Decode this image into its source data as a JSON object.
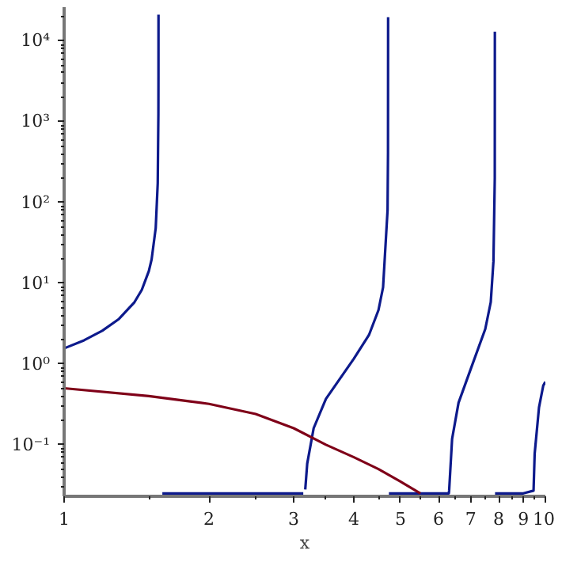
{
  "chart_data": {
    "type": "line",
    "xlabel": "x",
    "log": "xy",
    "grid": false,
    "marker": "none",
    "line_style": "solid",
    "xlim": [
      1,
      10
    ],
    "ylim": [
      0.023,
      26000
    ],
    "xticks": [
      1,
      2,
      3,
      4,
      5,
      6,
      7,
      8,
      9,
      10
    ],
    "yticks": [
      {
        "value": 0.1,
        "label": "10⁻¹"
      },
      {
        "value": 1,
        "label": "10⁰"
      },
      {
        "value": 10,
        "label": "10¹"
      },
      {
        "value": 100,
        "label": "10²"
      },
      {
        "value": 1000,
        "label": "10³"
      },
      {
        "value": 10000,
        "label": "10⁴"
      }
    ],
    "series": [
      {
        "color": "#0d1a8c",
        "x": [
          1,
          1.1,
          1.2,
          1.3,
          1.4,
          1.45,
          1.5,
          1.52,
          1.55,
          1.565,
          1.57,
          1.5705,
          1.57075,
          1.571,
          1.6,
          2,
          2.5,
          3,
          3.14,
          3.15,
          3.17,
          3.2,
          3.3,
          3.5,
          4,
          4.3,
          4.5,
          4.6,
          4.7,
          4.71,
          4.7123,
          4.72,
          4.73,
          5,
          5.5,
          6,
          6.3,
          6.31,
          6.4,
          6.6,
          7,
          7.5,
          7.7,
          7.8,
          7.85,
          7.853,
          7.855,
          7.86,
          8,
          9,
          9.45,
          9.5,
          9.7,
          9.9,
          10
        ],
        "values": [
          1.557,
          1.96,
          2.57,
          3.6,
          5.8,
          8.24,
          14.1,
          19.7,
          48,
          172,
          1256,
          3700,
          21000,
          null,
          0.025,
          0.025,
          0.025,
          0.025,
          0.025,
          null,
          0.028,
          0.0585,
          0.16,
          0.37,
          1.16,
          2.28,
          4.64,
          8.86,
          80,
          418,
          19500,
          null,
          0.025,
          0.025,
          0.025,
          0.025,
          0.025,
          0.027,
          0.118,
          0.33,
          0.87,
          2.7,
          5.8,
          18.6,
          200,
          12900,
          null,
          0.025,
          0.025,
          0.025,
          0.027,
          0.077,
          0.29,
          0.54,
          0.6
        ]
      },
      {
        "color": "#7f0018",
        "x": [
          1,
          1.5,
          2,
          2.5,
          3,
          3.5,
          4,
          4.5,
          5,
          5.5
        ],
        "values": [
          0.5,
          0.4,
          0.32,
          0.24,
          0.16,
          0.1,
          0.07,
          0.05,
          0.035,
          0.025
        ]
      }
    ]
  }
}
